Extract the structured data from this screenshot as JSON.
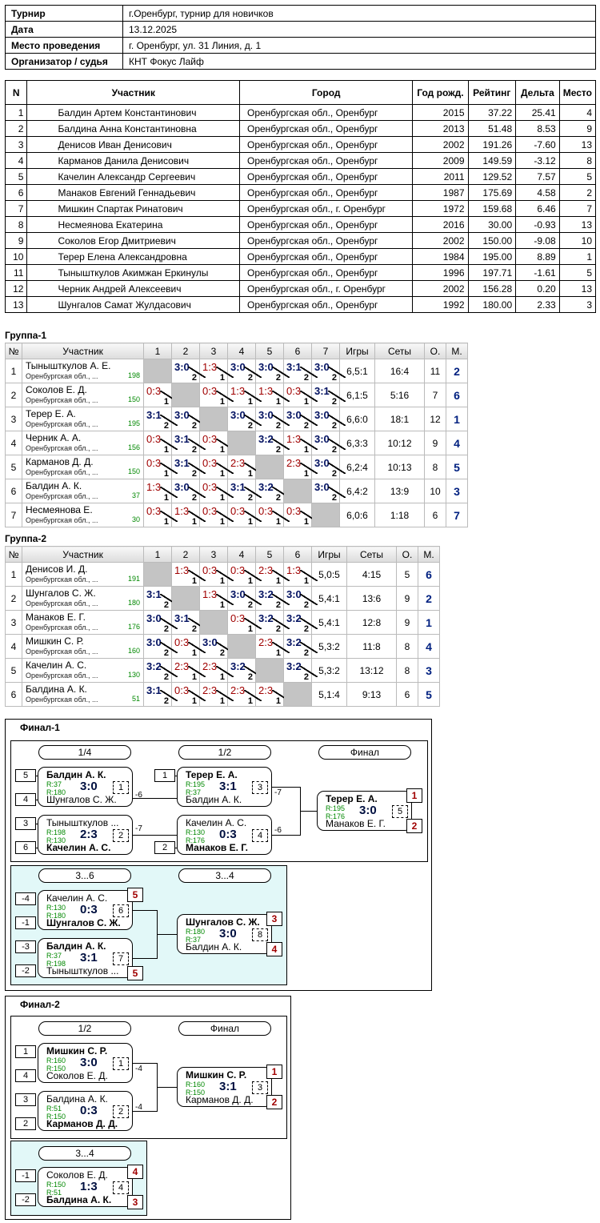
{
  "info": [
    {
      "k": "Турнир",
      "v": "г.Оренбург, турнир для новичков"
    },
    {
      "k": "Дата",
      "v": "13.12.2025"
    },
    {
      "k": "Место проведения",
      "v": "г. Оренбург, ул. 31 Линия, д. 1"
    },
    {
      "k": "Организатор / судья",
      "v": "КНТ Фокус Лайф"
    }
  ],
  "participants": {
    "headers": [
      "N",
      "Участник",
      "Город",
      "Год рожд.",
      "Рейтинг",
      "Дельта",
      "Место"
    ],
    "rows": [
      [
        "1",
        "Балдин Артем Константинович",
        "Оренбургская обл., Оренбург",
        "2015",
        "37.22",
        "25.41",
        "4"
      ],
      [
        "2",
        "Балдина Анна Константиновна",
        "Оренбургская обл., Оренбург",
        "2013",
        "51.48",
        "8.53",
        "9"
      ],
      [
        "3",
        "Денисов Иван Денисович",
        "Оренбургская обл., Оренбург",
        "2002",
        "191.26",
        "-7.60",
        "13"
      ],
      [
        "4",
        "Карманов Данила Денисович",
        "Оренбургская обл., Оренбург",
        "2009",
        "149.59",
        "-3.12",
        "8"
      ],
      [
        "5",
        "Качелин Александр Сергеевич",
        "Оренбургская обл., Оренбург",
        "2011",
        "129.52",
        "7.57",
        "5"
      ],
      [
        "6",
        "Манаков Евгений Геннадьевич",
        "Оренбургская обл., Оренбург",
        "1987",
        "175.69",
        "4.58",
        "2"
      ],
      [
        "7",
        "Мишкин Спартак Ринатович",
        "Оренбургская обл., г. Оренбург",
        "1972",
        "159.68",
        "6.46",
        "7"
      ],
      [
        "8",
        "Несмеянова Екатерина",
        "Оренбургская обл., Оренбург",
        "2016",
        "30.00",
        "-0.93",
        "13"
      ],
      [
        "9",
        "Соколов Егор Дмитриевич",
        "Оренбургская обл., Оренбург",
        "2002",
        "150.00",
        "-9.08",
        "10"
      ],
      [
        "10",
        "Терер Елена Александровна",
        "Оренбургская обл., Оренбург",
        "1984",
        "195.00",
        "8.89",
        "1"
      ],
      [
        "11",
        "Тынышткулов Акимжан Еркинулы",
        "Оренбургская обл., Оренбург",
        "1996",
        "197.71",
        "-1.61",
        "5"
      ],
      [
        "12",
        "Черник Андрей Алексеевич",
        "Оренбургская обл., г. Оренбург",
        "2002",
        "156.28",
        "0.20",
        "13"
      ],
      [
        "13",
        "Шунгалов Самат Жулдасович",
        "Оренбургская обл., Оренбург",
        "1992",
        "180.00",
        "2.33",
        "3"
      ]
    ]
  },
  "groups": [
    {
      "title": "Группа-1",
      "headers": [
        "№",
        "Участник",
        "1",
        "2",
        "3",
        "4",
        "5",
        "6",
        "7",
        "Игры",
        "Сеты",
        "О.",
        "М."
      ],
      "rows": [
        {
          "n": "1",
          "name": "Тынышткулов А. Е.",
          "city": "Оренбургская обл., ...",
          "rating": "198",
          "cells": [
            "",
            "3:0|2",
            "1:3|1",
            "3:0|2",
            "3:0|2",
            "3:1|2",
            "3:0|2"
          ],
          "games": "6,5:1",
          "sets": "16:4",
          "pts": "11",
          "place": "2"
        },
        {
          "n": "2",
          "name": "Соколов Е. Д.",
          "city": "Оренбургская обл., ...",
          "rating": "150",
          "cells": [
            "0:3|1",
            "",
            "0:3|1",
            "1:3|1",
            "1:3|1",
            "0:3|1",
            "3:1|2"
          ],
          "games": "6,1:5",
          "sets": "5:16",
          "pts": "7",
          "place": "6"
        },
        {
          "n": "3",
          "name": "Терер Е. А.",
          "city": "Оренбургская обл., ...",
          "rating": "195",
          "cells": [
            "3:1|2",
            "3:0|2",
            "",
            "3:0|2",
            "3:0|2",
            "3:0|2",
            "3:0|2"
          ],
          "games": "6,6:0",
          "sets": "18:1",
          "pts": "12",
          "place": "1"
        },
        {
          "n": "4",
          "name": "Черник А. А.",
          "city": "Оренбургская обл., ...",
          "rating": "156",
          "cells": [
            "0:3|1",
            "3:1|2",
            "0:3|1",
            "",
            "3:2|2",
            "1:3|1",
            "3:0|2"
          ],
          "games": "6,3:3",
          "sets": "10:12",
          "pts": "9",
          "place": "4"
        },
        {
          "n": "5",
          "name": "Карманов Д. Д.",
          "city": "Оренбургская обл., ...",
          "rating": "150",
          "cells": [
            "0:3|1",
            "3:1|2",
            "0:3|1",
            "2:3|1",
            "",
            "2:3|1",
            "3:0|2"
          ],
          "games": "6,2:4",
          "sets": "10:13",
          "pts": "8",
          "place": "5"
        },
        {
          "n": "6",
          "name": "Балдин А. К.",
          "city": "Оренбургская обл., ...",
          "rating": "37",
          "cells": [
            "1:3|1",
            "3:0|2",
            "0:3|1",
            "3:1|2",
            "3:2|2",
            "",
            "3:0|2"
          ],
          "games": "6,4:2",
          "sets": "13:9",
          "pts": "10",
          "place": "3"
        },
        {
          "n": "7",
          "name": "Несмеянова Е.",
          "city": "Оренбургская обл., ...",
          "rating": "30",
          "cells": [
            "0:3|1",
            "1:3|1",
            "0:3|1",
            "0:3|1",
            "0:3|1",
            "0:3|1",
            ""
          ],
          "games": "6,0:6",
          "sets": "1:18",
          "pts": "6",
          "place": "7"
        }
      ]
    },
    {
      "title": "Группа-2",
      "headers": [
        "№",
        "Участник",
        "1",
        "2",
        "3",
        "4",
        "5",
        "6",
        "Игры",
        "Сеты",
        "О.",
        "М."
      ],
      "rows": [
        {
          "n": "1",
          "name": "Денисов И. Д.",
          "city": "Оренбургская обл., ...",
          "rating": "191",
          "cells": [
            "",
            "1:3|1",
            "0:3|1",
            "0:3|1",
            "2:3|1",
            "1:3|1"
          ],
          "games": "5,0:5",
          "sets": "4:15",
          "pts": "5",
          "place": "6"
        },
        {
          "n": "2",
          "name": "Шунгалов С. Ж.",
          "city": "Оренбургская обл., ...",
          "rating": "180",
          "cells": [
            "3:1|2",
            "",
            "1:3|1",
            "3:0|2",
            "3:2|2",
            "3:0|2"
          ],
          "games": "5,4:1",
          "sets": "13:6",
          "pts": "9",
          "place": "2"
        },
        {
          "n": "3",
          "name": "Манаков Е. Г.",
          "city": "Оренбургская обл., ...",
          "rating": "176",
          "cells": [
            "3:0|2",
            "3:1|2",
            "",
            "0:3|1",
            "3:2|2",
            "3:2|2"
          ],
          "games": "5,4:1",
          "sets": "12:8",
          "pts": "9",
          "place": "1"
        },
        {
          "n": "4",
          "name": "Мишкин С. Р.",
          "city": "Оренбургская обл., ...",
          "rating": "160",
          "cells": [
            "3:0|2",
            "0:3|1",
            "3:0|2",
            "",
            "2:3|1",
            "3:2|2"
          ],
          "games": "5,3:2",
          "sets": "11:8",
          "pts": "8",
          "place": "4"
        },
        {
          "n": "5",
          "name": "Качелин А. С.",
          "city": "Оренбургская обл., ...",
          "rating": "130",
          "cells": [
            "3:2|2",
            "2:3|1",
            "2:3|1",
            "3:2|2",
            "",
            "3:2|2"
          ],
          "games": "5,3:2",
          "sets": "13:12",
          "pts": "8",
          "place": "3"
        },
        {
          "n": "6",
          "name": "Балдина А. К.",
          "city": "Оренбургская обл., ...",
          "rating": "51",
          "cells": [
            "3:1|2",
            "0:3|1",
            "2:3|1",
            "2:3|1",
            "2:3|1",
            ""
          ],
          "games": "5,1:4",
          "sets": "9:13",
          "pts": "6",
          "place": "5"
        }
      ]
    }
  ],
  "final1": {
    "title": "Финал-1",
    "rounds": [
      "1/4",
      "1/2",
      "Финал"
    ],
    "consolation": [
      "3...6",
      "3...4"
    ],
    "seeds": [
      "5",
      "4",
      "3",
      "6",
      "1",
      "2",
      "-4",
      "-1",
      "-3",
      "-2"
    ],
    "m1": {
      "a": "Балдин А. К.",
      "ra": "R:37",
      "rb": "R:180",
      "b": "Шунгалов С. Ж.",
      "score": "3:0",
      "num": "1",
      "lose": "-6"
    },
    "m2": {
      "a": "Тынышткулов ...",
      "ra": "R:198",
      "rb": "R:130",
      "b": "Качелин А. С.",
      "score": "2:3",
      "num": "2",
      "lose": "-7"
    },
    "m3": {
      "a": "Терер Е. А.",
      "ra": "R:195",
      "rb": "R:37",
      "b": "Балдин А. К.",
      "score": "3:1",
      "num": "3",
      "lose": "-7"
    },
    "m4": {
      "a": "Качелин А. С.",
      "ra": "R:130",
      "rb": "R:176",
      "b": "Манаков Е. Г.",
      "score": "0:3",
      "num": "4",
      "lose": "-6"
    },
    "m5": {
      "a": "Терер Е. А.",
      "ra": "R:195",
      "rb": "R:176",
      "b": "Манаков Е. Г.",
      "score": "3:0",
      "num": "5",
      "pa": "1",
      "pb": "2"
    },
    "m6": {
      "a": "Качелин А. С.",
      "ra": "R:130",
      "rb": "R:180",
      "b": "Шунгалов С. Ж.",
      "score": "0:3",
      "num": "6",
      "pa": "5"
    },
    "m7": {
      "a": "Балдин А. К.",
      "ra": "R:37",
      "rb": "R:198",
      "b": "Тынышткулов ...",
      "score": "3:1",
      "num": "7",
      "pb": "5"
    },
    "m8": {
      "a": "Шунгалов С. Ж.",
      "ra": "R:180",
      "rb": "R:37",
      "b": "Балдин А. К.",
      "score": "3:0",
      "num": "8",
      "pa": "3",
      "pb": "4"
    }
  },
  "final2": {
    "title": "Финал-2",
    "rounds": [
      "1/2",
      "Финал"
    ],
    "consolation": [
      "3...4"
    ],
    "seeds": [
      "1",
      "4",
      "3",
      "2",
      "-1",
      "-2"
    ],
    "m1": {
      "a": "Мишкин С. Р.",
      "ra": "R:160",
      "rb": "R:150",
      "b": "Соколов Е. Д.",
      "score": "3:0",
      "num": "1",
      "lose": "-4"
    },
    "m2": {
      "a": "Балдина А. К.",
      "ra": "R:51",
      "rb": "R:150",
      "b": "Карманов Д. Д.",
      "score": "0:3",
      "num": "2",
      "lose": "-4"
    },
    "m3": {
      "a": "Мишкин С. Р.",
      "ra": "R:160",
      "rb": "R:150",
      "b": "Карманов Д. Д.",
      "score": "3:1",
      "num": "3",
      "pa": "1",
      "pb": "2"
    },
    "m4": {
      "a": "Соколов Е. Д.",
      "ra": "R:150",
      "rb": "R:51",
      "b": "Балдина А. К.",
      "score": "1:3",
      "num": "4",
      "pa": "4",
      "pb": "3"
    }
  }
}
